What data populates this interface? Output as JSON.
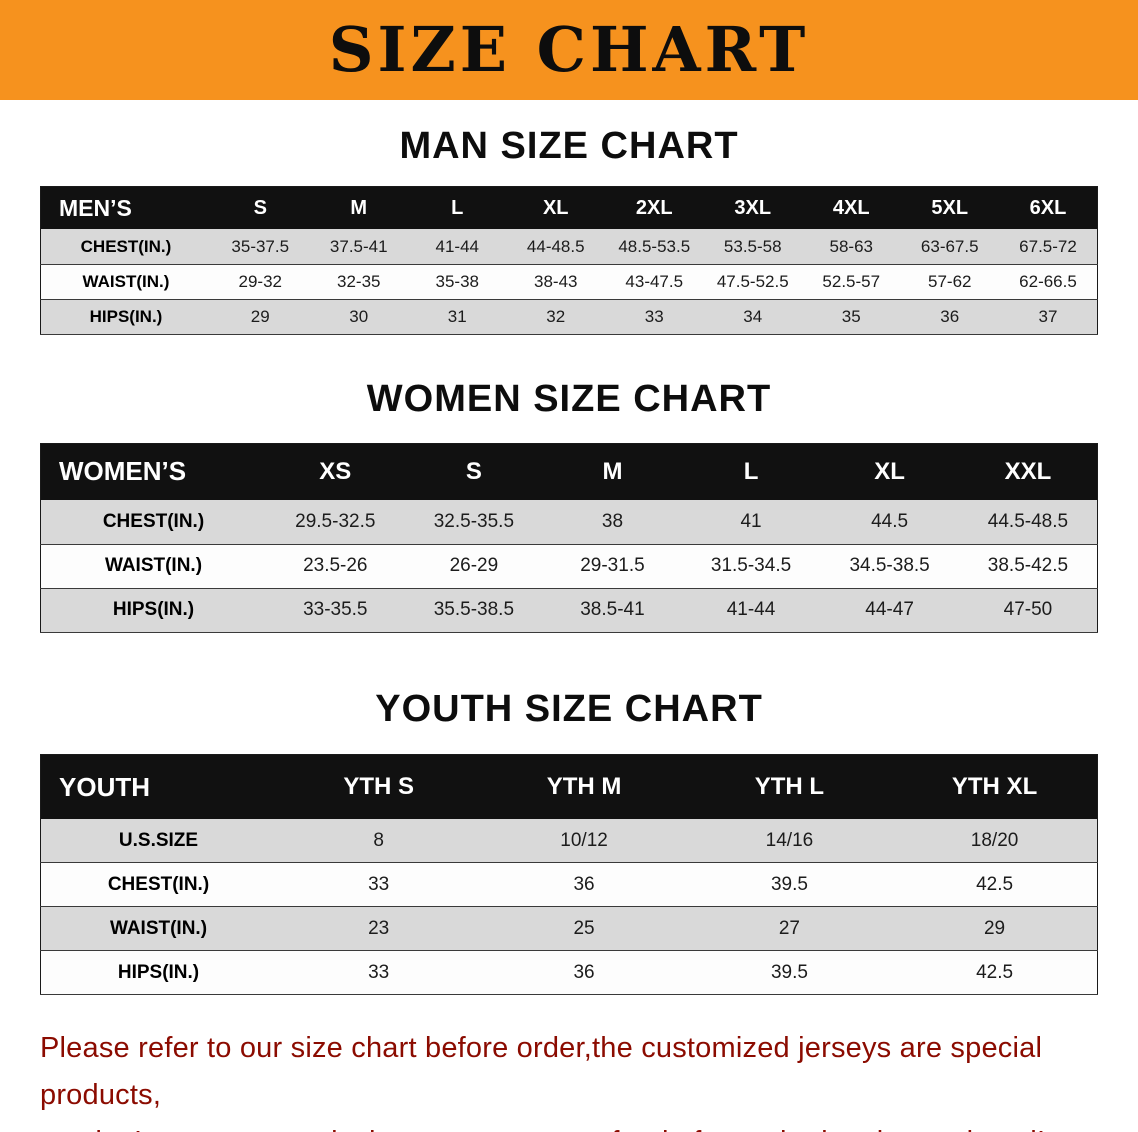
{
  "banner": {
    "title": "SIZE CHART"
  },
  "colors": {
    "banner_bg": "#f6921e",
    "table_header_bar": "#111111",
    "table_row_gray": "#d9d9d9",
    "note_red": "#8b0b00"
  },
  "men": {
    "heading": "MAN SIZE CHART",
    "table": {
      "header": [
        "MEN’S",
        "S",
        "M",
        "L",
        "XL",
        "2XL",
        "3XL",
        "4XL",
        "5XL",
        "6XL"
      ],
      "rows": [
        {
          "label": "CHEST(IN.)",
          "values": [
            "35-37.5",
            "37.5-41",
            "41-44",
            "44-48.5",
            "48.5-53.5",
            "53.5-58",
            "58-63",
            "63-67.5",
            "67.5-72"
          ]
        },
        {
          "label": "WAIST(IN.)",
          "values": [
            "29-32",
            "32-35",
            "35-38",
            "38-43",
            "43-47.5",
            "47.5-52.5",
            "52.5-57",
            "57-62",
            "62-66.5"
          ]
        },
        {
          "label": "HIPS(IN.)",
          "values": [
            "29",
            "30",
            "31",
            "32",
            "33",
            "34",
            "35",
            "36",
            "37"
          ]
        }
      ]
    }
  },
  "women": {
    "heading": "WOMEN SIZE CHART",
    "table": {
      "header": [
        "WOMEN’S",
        "XS",
        "S",
        "M",
        "L",
        "XL",
        "XXL"
      ],
      "rows": [
        {
          "label": "CHEST(IN.)",
          "values": [
            "29.5-32.5",
            "32.5-35.5",
            "38",
            "41",
            "44.5",
            "44.5-48.5"
          ]
        },
        {
          "label": "WAIST(IN.)",
          "values": [
            "23.5-26",
            "26-29",
            "29-31.5",
            "31.5-34.5",
            "34.5-38.5",
            "38.5-42.5"
          ]
        },
        {
          "label": "HIPS(IN.)",
          "values": [
            "33-35.5",
            "35.5-38.5",
            "38.5-41",
            "41-44",
            "44-47",
            "47-50"
          ]
        }
      ]
    }
  },
  "youth": {
    "heading": "YOUTH SIZE CHART",
    "table": {
      "header": [
        "YOUTH",
        "YTH S",
        "YTH M",
        "YTH L",
        "YTH XL"
      ],
      "rows": [
        {
          "label": "U.S.SIZE",
          "values": [
            "8",
            "10/12",
            "14/16",
            "18/20"
          ]
        },
        {
          "label": "CHEST(IN.)",
          "values": [
            "33",
            "36",
            "39.5",
            "42.5"
          ]
        },
        {
          "label": "WAIST(IN.)",
          "values": [
            "23",
            "25",
            "27",
            "29"
          ]
        },
        {
          "label": "HIPS(IN.)",
          "values": [
            "33",
            "36",
            "39.5",
            "42.5"
          ]
        }
      ]
    }
  },
  "footer": {
    "line1": "Please refer to our size chart before order,the customized jerseys are special products,",
    "line2": "we don’t accept cancel, change, teturn or refund after order has been placed!"
  }
}
